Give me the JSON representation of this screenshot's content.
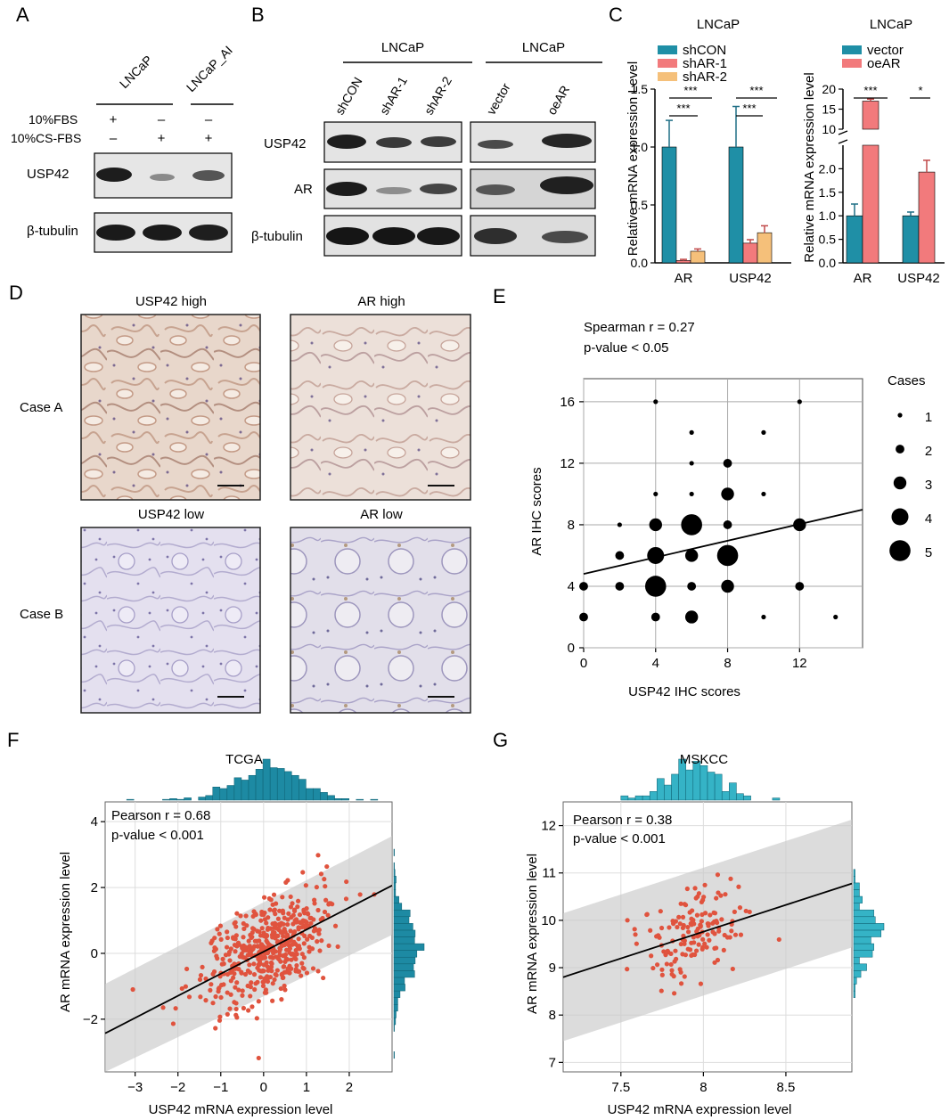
{
  "panel_letters": {
    "a": "A",
    "b": "B",
    "c": "C",
    "d": "D",
    "e": "E",
    "f": "F",
    "g": "G"
  },
  "panel_a": {
    "lane_labels": [
      "LNCaP",
      "LNCaP_AI"
    ],
    "conditions": [
      {
        "name": "10%FBS",
        "marks": [
          "+",
          "–",
          "–"
        ]
      },
      {
        "name": "10%CS-FBS",
        "marks": [
          "–",
          "+",
          "+"
        ]
      }
    ],
    "blots": [
      "USP42",
      "β-tubulin"
    ]
  },
  "panel_b": {
    "group1_title": "LNCaP",
    "group2_title": "LNCaP",
    "lanes1": [
      "shCON",
      "shAR-1",
      "shAR-2"
    ],
    "lanes2": [
      "vector",
      "oeAR"
    ],
    "blots": [
      "USP42",
      "AR",
      "β-tubulin"
    ]
  },
  "chart_data": [
    {
      "id": "C-left",
      "type": "bar",
      "title": "LNCaP",
      "ylabel": "Relative mRNA expression Level",
      "categories": [
        "AR",
        "USP42"
      ],
      "ylim": [
        0,
        1.5
      ],
      "yticks": [
        "0.0",
        "0.5",
        "1.0",
        "1.5"
      ],
      "series": [
        {
          "name": "shCON",
          "color": "#1f8fa6",
          "values": [
            1.0,
            1.0
          ],
          "errors": [
            0.23,
            0.35
          ]
        },
        {
          "name": "shAR-1",
          "color": "#f27a7c",
          "values": [
            0.02,
            0.17
          ],
          "errors": [
            0.01,
            0.03
          ]
        },
        {
          "name": "shAR-2",
          "color": "#f5c07a",
          "values": [
            0.1,
            0.26
          ],
          "errors": [
            0.02,
            0.06
          ]
        }
      ],
      "significance": [
        "***",
        "***",
        "***",
        "***"
      ]
    },
    {
      "id": "C-right",
      "type": "bar",
      "title": "LNCaP",
      "ylabel": "Relative mRNA expression level",
      "categories": [
        "AR",
        "USP42"
      ],
      "ylim": [
        0,
        20
      ],
      "axis_break": [
        2.5,
        10
      ],
      "yticks": [
        "0.0",
        "0.5",
        "1.0",
        "1.5",
        "2.0",
        "10",
        "15",
        "20"
      ],
      "series": [
        {
          "name": "vector",
          "color": "#1f8fa6",
          "values": [
            1.0,
            1.0
          ],
          "errors": [
            0.25,
            0.08
          ]
        },
        {
          "name": "oeAR",
          "color": "#f27a7c",
          "values": [
            17.0,
            1.93
          ],
          "errors": [
            0.5,
            0.25
          ]
        }
      ],
      "significance": [
        "***",
        "*"
      ]
    },
    {
      "id": "E",
      "type": "scatter",
      "title": "",
      "annotation_r": "Spearman r = 0.27",
      "annotation_p": "p-value < 0.05",
      "xlabel": "USP42 IHC scores",
      "ylabel": "AR IHC scores",
      "xlim": [
        0,
        15.5
      ],
      "ylim": [
        0,
        17.5
      ],
      "xticks": [
        0,
        4,
        8,
        12
      ],
      "yticks": [
        0,
        4,
        8,
        12,
        16
      ],
      "legend_title": "Cases",
      "legend_sizes": [
        1,
        2,
        3,
        4,
        5
      ],
      "fit": {
        "slope": 0.27,
        "intercept": 4.8
      },
      "points": [
        {
          "x": 0,
          "y": 2,
          "n": 2
        },
        {
          "x": 0,
          "y": 4,
          "n": 2
        },
        {
          "x": 2,
          "y": 4,
          "n": 2
        },
        {
          "x": 2,
          "y": 6,
          "n": 2
        },
        {
          "x": 2,
          "y": 8,
          "n": 1
        },
        {
          "x": 4,
          "y": 2,
          "n": 2
        },
        {
          "x": 4,
          "y": 4,
          "n": 5
        },
        {
          "x": 4,
          "y": 6,
          "n": 4
        },
        {
          "x": 4,
          "y": 8,
          "n": 3
        },
        {
          "x": 4,
          "y": 10,
          "n": 1
        },
        {
          "x": 4,
          "y": 16,
          "n": 1
        },
        {
          "x": 6,
          "y": 2,
          "n": 3
        },
        {
          "x": 6,
          "y": 4,
          "n": 2
        },
        {
          "x": 6,
          "y": 6,
          "n": 3
        },
        {
          "x": 6,
          "y": 8,
          "n": 5
        },
        {
          "x": 6,
          "y": 10,
          "n": 1
        },
        {
          "x": 6,
          "y": 12,
          "n": 1
        },
        {
          "x": 6,
          "y": 14,
          "n": 1
        },
        {
          "x": 8,
          "y": 4,
          "n": 3
        },
        {
          "x": 8,
          "y": 6,
          "n": 5
        },
        {
          "x": 8,
          "y": 8,
          "n": 2
        },
        {
          "x": 8,
          "y": 10,
          "n": 3
        },
        {
          "x": 8,
          "y": 12,
          "n": 2
        },
        {
          "x": 10,
          "y": 2,
          "n": 1
        },
        {
          "x": 10,
          "y": 10,
          "n": 1
        },
        {
          "x": 10,
          "y": 14,
          "n": 1
        },
        {
          "x": 12,
          "y": 4,
          "n": 2
        },
        {
          "x": 12,
          "y": 8,
          "n": 3
        },
        {
          "x": 12,
          "y": 16,
          "n": 1
        },
        {
          "x": 14,
          "y": 2,
          "n": 1
        }
      ]
    },
    {
      "id": "F",
      "type": "scatter",
      "title": "TCGA",
      "annotation_r": "Pearson r = 0.68",
      "annotation_p": "p-value < 0.001",
      "xlabel": "USP42 mRNA expression level",
      "ylabel": "AR mRNA expression level",
      "xlim": [
        -3.7,
        3.0
      ],
      "ylim": [
        -3.6,
        4.6
      ],
      "xticks": [
        -3,
        -2,
        -1,
        0,
        1,
        2
      ],
      "yticks": [
        -2,
        0,
        2,
        4
      ],
      "fit": {
        "slope": 0.67,
        "intercept": 0.05
      },
      "band_halfwidth": 1.5,
      "n_points": 480,
      "seed": 7,
      "mean_x": 0.1,
      "sd_x": 0.75,
      "resid_sd": 0.72
    },
    {
      "id": "G",
      "type": "scatter",
      "title": "MSKCC",
      "annotation_r": "Pearson r = 0.38",
      "annotation_p": "p-value < 0.001",
      "xlabel": "USP42 mRNA expression level",
      "ylabel": "AR mRNA expression level",
      "xlim": [
        7.15,
        8.9
      ],
      "ylim": [
        6.8,
        12.5
      ],
      "xticks": [
        7.5,
        8.0,
        8.5
      ],
      "yticks": [
        7,
        8,
        9,
        10,
        11,
        12
      ],
      "fit": {
        "slope": 1.13,
        "intercept": 0.72
      },
      "band_halfwidth": 1.35,
      "n_points": 150,
      "seed": 13,
      "mean_x": 7.95,
      "sd_x": 0.17,
      "resid_sd": 0.45
    }
  ],
  "panel_d": {
    "labels": [
      "USP42 high",
      "AR high",
      "USP42 low",
      "AR low"
    ],
    "rows": [
      "Case A",
      "Case B"
    ]
  }
}
